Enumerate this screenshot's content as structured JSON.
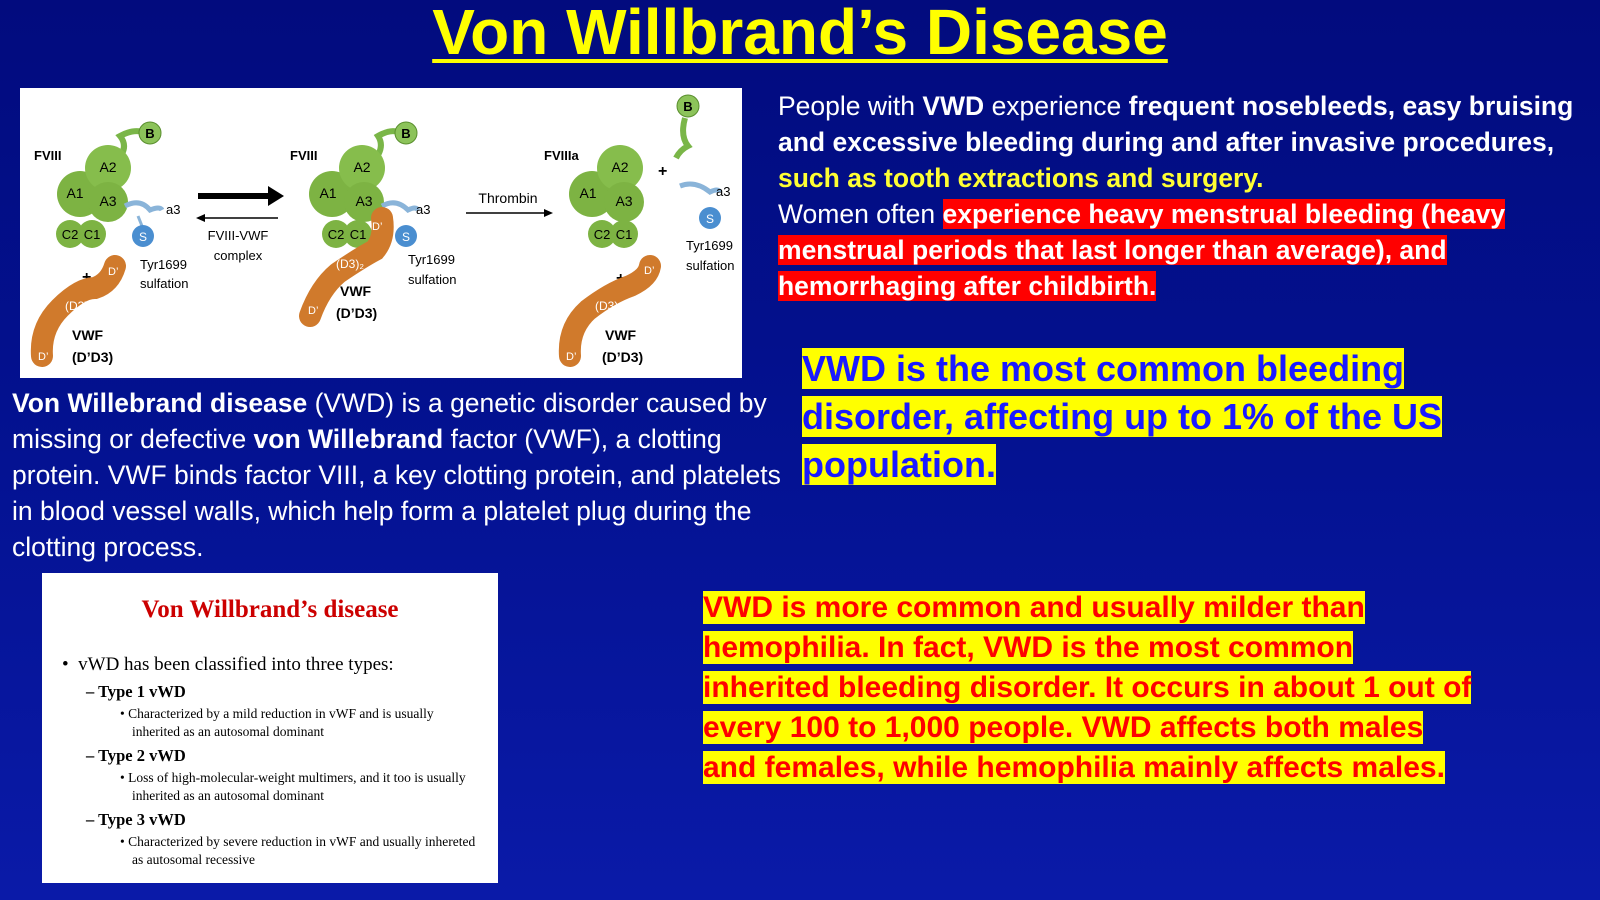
{
  "title": "Von Willbrand’s Disease",
  "diagram": {
    "left": {
      "fviii": "FVIII",
      "a1": "A1",
      "a2": "A2",
      "a3": "A3",
      "c1": "C1",
      "c2": "C2",
      "b": "B",
      "a3small": "a3",
      "s": "S",
      "tyr_line1": "Tyr1699",
      "tyr_line2": "sulfation",
      "plus": "+",
      "dprime": "D’",
      "d3": "(D3)₂",
      "vwf": "VWF",
      "vwf_sub": "(D’D3)"
    },
    "arrow_label_1": "FVIII-VWF",
    "arrow_label_2": "complex",
    "middle": {
      "fviii": "FVIII",
      "a1": "A1",
      "a2": "A2",
      "a3": "A3",
      "c1": "C1",
      "c2": "C2",
      "b": "B",
      "a3small": "a3",
      "s": "S",
      "tyr_line1": "Tyr1699",
      "tyr_line2": "sulfation",
      "dprime": "D’",
      "d3": "(D3)₂",
      "vwf": "VWF",
      "vwf_sub": "(D’D3)"
    },
    "thrombin_label": "Thrombin",
    "right": {
      "fviiia": "FVIIIa",
      "a1": "A1",
      "a2": "A2",
      "a3": "A3",
      "c1": "C1",
      "c2": "C2",
      "b": "B",
      "a3small": "a3",
      "s": "S",
      "tyr_line1": "Tyr1699",
      "tyr_line2": "sulfation",
      "plus": "+",
      "dprime": "D’",
      "d3": "(D3)₂",
      "vwf": "VWF",
      "vwf_sub": "(D’D3)"
    }
  },
  "definition": {
    "p1_bold": "Von Willebrand disease",
    "p2": " (VWD) is a genetic disorder caused by missing or defective ",
    "p3_bold": "von Willebrand",
    "p4": " factor (VWF), a clotting protein. VWF binds factor VIII, a key clotting protein, and platelets in blood vessel walls, which help form a platelet plug during the clotting process."
  },
  "symptoms": {
    "s1": "People with ",
    "s2": "VWD",
    "s3": " experience ",
    "s4": "frequent nosebleeds, easy bruising and excessive bleeding during and after invasive procedures, ",
    "s5": "such as tooth extractions and surgery.",
    "s6": "Women often ",
    "s7": "experience heavy menstrual bleeding (heavy menstrual periods that last longer than average), and hemorrhaging after childbirth."
  },
  "common_text": "VWD is the most common bleeding disorder, affecting up to 1% of the US population.",
  "compare_text": "VWD is more common and usually milder than hemophilia. In fact, VWD is the most common inherited bleeding disorder. It occurs in about 1 out of every 100 to 1,000 people. VWD affects both males and females, while hemophilia mainly affects males.",
  "card": {
    "title": "Von Willbrand’s disease",
    "intro": "vWD has been classified into three types:",
    "types": [
      {
        "name": "Type 1 vWD",
        "desc": "Characterized by a mild reduction in vWF and is usually inherited as an autosomal dominant"
      },
      {
        "name": "Type 2 vWD",
        "desc": "Loss of high-molecular-weight multimers, and it too is usually inherited as an autosomal dominant"
      },
      {
        "name": "Type 3 vWD",
        "desc": "Characterized by severe reduction in vWF and usually inhereted as autosomal recessive"
      }
    ]
  }
}
